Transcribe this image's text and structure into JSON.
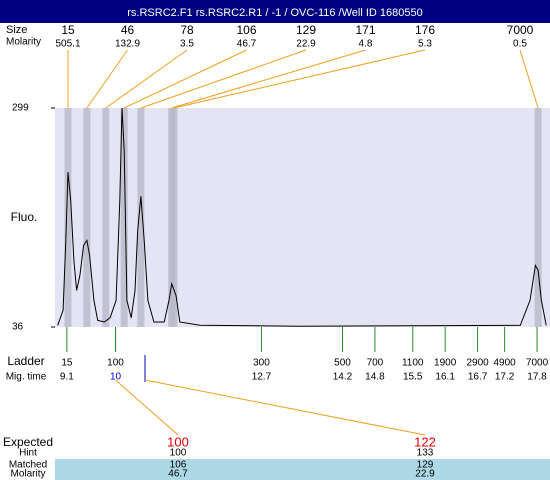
{
  "header": {
    "title": "rs.RSRC2.F1  rs.RSRC2.R1  / -1 / OVC-116 /Well ID 1680550"
  },
  "peaks": {
    "size_label": "Size",
    "molarity_label": "Molarity",
    "sizes": [
      15,
      46,
      78,
      106,
      129,
      171,
      176,
      7000
    ],
    "molarities": [
      505.1,
      132.9,
      3.5,
      46.7,
      22.9,
      4.8,
      5.3,
      0.5
    ],
    "times": [
      9.12,
      9.47,
      9.82,
      10.16,
      10.47,
      11.04,
      11.08,
      17.82
    ]
  },
  "chart_data": {
    "type": "line",
    "y_label": "Fluo.",
    "color": "#000000",
    "x": [
      8.93,
      9.03,
      9.08,
      9.12,
      9.17,
      9.23,
      9.28,
      9.34,
      9.41,
      9.47,
      9.52,
      9.6,
      9.67,
      9.79,
      9.9,
      10.01,
      10.08,
      10.12,
      10.16,
      10.21,
      10.29,
      10.36,
      10.41,
      10.47,
      10.53,
      10.6,
      10.71,
      10.9,
      10.99,
      11.04,
      11.12,
      11.19,
      11.56,
      13.41,
      17.49,
      17.67,
      17.77,
      17.82,
      17.88,
      17.97
    ],
    "values": [
      38,
      56,
      140,
      222,
      188,
      116,
      80,
      98,
      134,
      140,
      122,
      68,
      44,
      42,
      47,
      68,
      188,
      299,
      248,
      68,
      47,
      80,
      152,
      193,
      140,
      68,
      42,
      42,
      68,
      88,
      74,
      42,
      38,
      37,
      38,
      68,
      110,
      104,
      68,
      38
    ],
    "xlim": [
      8.88,
      18.04
    ],
    "ylim": [
      36,
      299
    ],
    "yticks": [
      36,
      299
    ]
  },
  "ladder": {
    "label": "Ladder",
    "time_label": "Mig. time",
    "sizes": [
      15,
      100,
      300,
      500,
      700,
      1100,
      1900,
      2900,
      4900,
      7000
    ],
    "times": [
      9.1,
      10,
      12.7,
      14.2,
      14.8,
      15.5,
      16.1,
      16.7,
      17.2,
      17.8
    ]
  },
  "expected": {
    "labels": [
      "Expected",
      "Hint",
      "Matched",
      "Molarity"
    ],
    "columns": [
      {
        "expected": 100,
        "hint": 100,
        "matched": 106,
        "molarity": 46.7
      },
      {
        "expected": 122,
        "hint": 133,
        "matched": 129,
        "molarity": 22.9
      }
    ]
  }
}
